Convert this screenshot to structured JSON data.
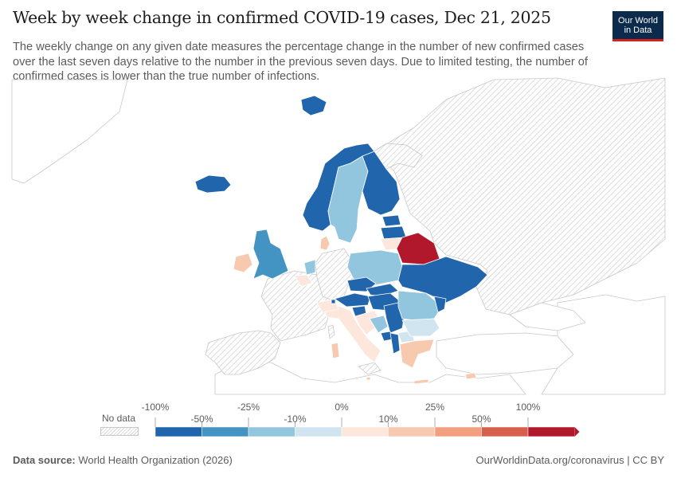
{
  "header": {
    "title": "Week by week change in confirmed COVID-19 cases, Dec 21, 2025",
    "subtitle": "The weekly change on any given date measures the percentage change in the number of new confirmed cases over the last seven days relative to the number in the previous seven days. Due to limited testing, the number of confirmed cases is lower than the true number of infections.",
    "logo_line1": "Our World",
    "logo_line2": "in Data"
  },
  "colors": {
    "no_data": "#e6e6e6",
    "land_blank": "#ffffff",
    "border": "#bbbbbb"
  },
  "chart_data": {
    "type": "choropleth",
    "region": "Europe",
    "metric": "Week by week change in confirmed COVID-19 cases (%)",
    "date": "Dec 21, 2025",
    "legend": {
      "no_data_label": "No data",
      "bins": [
        {
          "from": -100,
          "to": -50,
          "color": "#2166ac"
        },
        {
          "from": -50,
          "to": -25,
          "color": "#4393c3"
        },
        {
          "from": -25,
          "to": -10,
          "color": "#92c5de"
        },
        {
          "from": -10,
          "to": 0,
          "color": "#d1e5f0"
        },
        {
          "from": 0,
          "to": 10,
          "color": "#fde7dc"
        },
        {
          "from": 10,
          "to": 25,
          "color": "#f7c9ae"
        },
        {
          "from": 25,
          "to": 50,
          "color": "#f19f7e"
        },
        {
          "from": 50,
          "to": 100,
          "color": "#d6604d"
        },
        {
          "from": 100,
          "to": null,
          "color": "#b2182b"
        }
      ],
      "tick_labels": [
        "-100%",
        "-50%",
        "-25%",
        "-10%",
        "0%",
        "10%",
        "25%",
        "50%",
        "100%"
      ]
    },
    "countries": [
      {
        "name": "Norway",
        "bin": "-100% to -50%"
      },
      {
        "name": "Sweden",
        "bin": "-25% to -10%"
      },
      {
        "name": "Finland",
        "bin": "-100% to -50%"
      },
      {
        "name": "Iceland",
        "bin": "-100% to -50%"
      },
      {
        "name": "Svalbard",
        "bin": "-100% to -50%"
      },
      {
        "name": "Denmark",
        "bin": "10% to 25%"
      },
      {
        "name": "United Kingdom",
        "bin": "-50% to -25%"
      },
      {
        "name": "Ireland",
        "bin": "10% to 25%"
      },
      {
        "name": "Netherlands",
        "bin": "-25% to -10%"
      },
      {
        "name": "Belgium",
        "bin": "0% to 10%"
      },
      {
        "name": "Estonia",
        "bin": "-100% to -50%"
      },
      {
        "name": "Latvia",
        "bin": "-100% to -50%"
      },
      {
        "name": "Lithuania",
        "bin": "0% to 10%"
      },
      {
        "name": "Belarus",
        "bin": "100%+"
      },
      {
        "name": "Poland",
        "bin": "-25% to -10%"
      },
      {
        "name": "Ukraine",
        "bin": "-100% to -50%"
      },
      {
        "name": "Moldova",
        "bin": "-100% to -50%"
      },
      {
        "name": "Czechia",
        "bin": "-100% to -50%"
      },
      {
        "name": "Slovakia",
        "bin": "-100% to -50%"
      },
      {
        "name": "Austria",
        "bin": "-100% to -50%"
      },
      {
        "name": "Hungary",
        "bin": "-100% to -50%"
      },
      {
        "name": "Slovenia",
        "bin": "-100% to -50%"
      },
      {
        "name": "Croatia",
        "bin": "0% to 10%"
      },
      {
        "name": "Bosnia and Herzegovina",
        "bin": "-25% to -10%"
      },
      {
        "name": "Serbia",
        "bin": "-100% to -50%"
      },
      {
        "name": "Montenegro",
        "bin": "-100% to -50%"
      },
      {
        "name": "Albania",
        "bin": "-100% to -50%"
      },
      {
        "name": "North Macedonia",
        "bin": "-10% to 0%"
      },
      {
        "name": "Romania",
        "bin": "-25% to -10%"
      },
      {
        "name": "Bulgaria",
        "bin": "-10% to 0%"
      },
      {
        "name": "Greece",
        "bin": "10% to 25%"
      },
      {
        "name": "Italy",
        "bin": "0% to 10%"
      },
      {
        "name": "Switzerland",
        "bin": "0% to 10%"
      },
      {
        "name": "Liechtenstein",
        "bin": "-100% to -50%"
      },
      {
        "name": "Sardinia (Italy)",
        "bin": "10% to 25%"
      },
      {
        "name": "Cyprus",
        "bin": "10% to 25%"
      },
      {
        "name": "Malta",
        "bin": "10% to 25%"
      },
      {
        "name": "Crete (Greece)",
        "bin": "10% to 25%"
      }
    ]
  },
  "footer": {
    "source_label": "Data source:",
    "source_value": "World Health Organization (2026)",
    "url_text": "OurWorldinData.org/coronavirus | CC BY"
  }
}
